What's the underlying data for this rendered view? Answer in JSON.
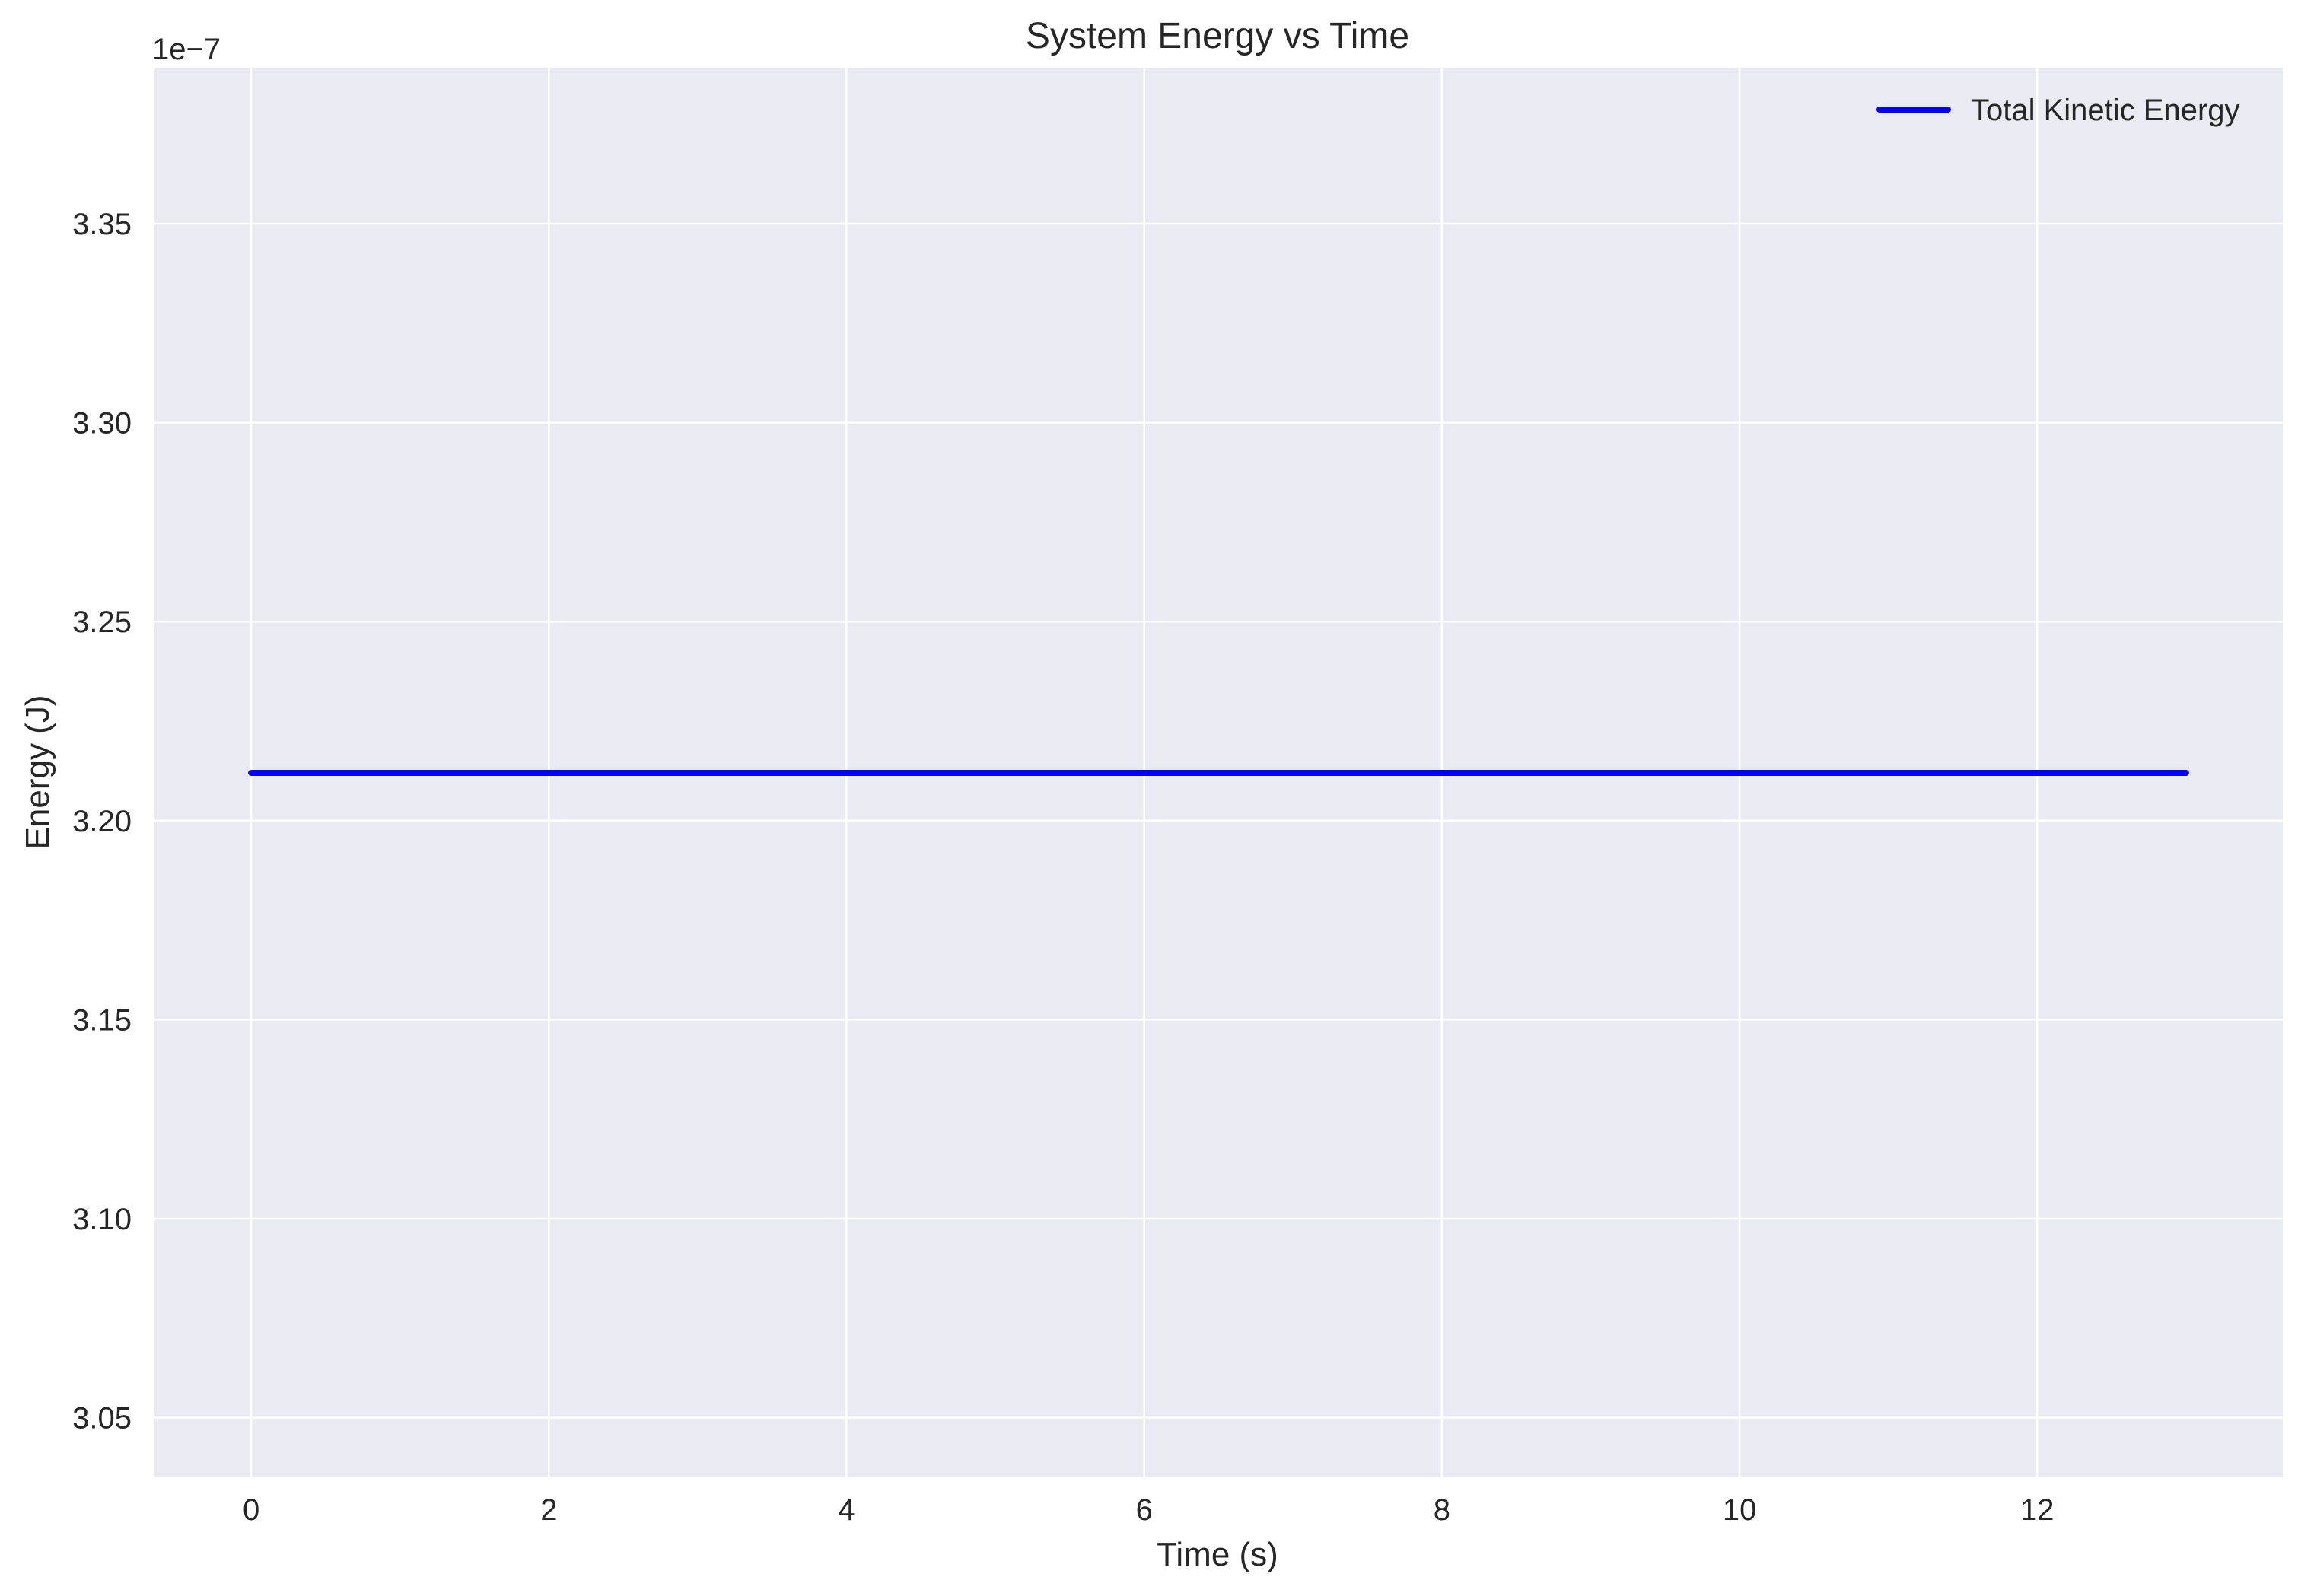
{
  "chart_data": {
    "type": "line",
    "title": "System Energy vs Time",
    "xlabel": "Time (s)",
    "ylabel": "Energy (J)",
    "y_offset_label": "1e−7",
    "xlim": [
      -0.65,
      13.65
    ],
    "ylim": [
      3.035,
      3.389
    ],
    "x_ticks": [
      0,
      2,
      4,
      6,
      8,
      10,
      12
    ],
    "y_ticks": [
      3.05,
      3.1,
      3.15,
      3.2,
      3.25,
      3.3,
      3.35
    ],
    "y_tick_labels": [
      "3.05",
      "3.10",
      "3.15",
      "3.20",
      "3.25",
      "3.30",
      "3.35"
    ],
    "grid": true,
    "legend_position": "top-right",
    "colors": {
      "plot_background": "#EAEAF2",
      "grid": "#FFFFFF",
      "text": "#262626"
    },
    "series": [
      {
        "name": "Total Kinetic Energy",
        "color": "#0000FF",
        "x": [
          0,
          13
        ],
        "y": [
          3.212,
          3.212
        ]
      }
    ]
  }
}
